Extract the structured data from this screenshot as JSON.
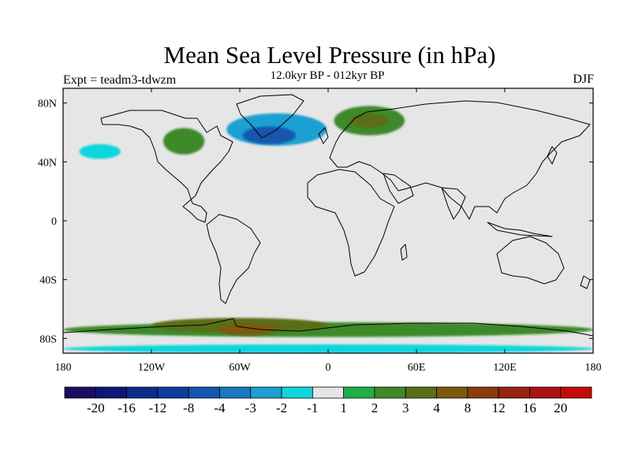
{
  "title": "Mean Sea Level Pressure (in hPa)",
  "subtitle": "12.0kyr BP - 012kyr BP",
  "experiment": "Expt = teadm3-tdwzm",
  "season": "DJF",
  "map": {
    "lon_range": [
      -180,
      180
    ],
    "lat_range": [
      -90,
      90
    ],
    "background_color": "#e6e6e6"
  },
  "x_ticks": [
    {
      "value": -180,
      "label": "180"
    },
    {
      "value": -120,
      "label": "120W"
    },
    {
      "value": -60,
      "label": "60W"
    },
    {
      "value": 0,
      "label": "0"
    },
    {
      "value": 60,
      "label": "60E"
    },
    {
      "value": 120,
      "label": "120E"
    },
    {
      "value": 180,
      "label": "180"
    }
  ],
  "y_ticks": [
    {
      "value": 80,
      "label": "80N"
    },
    {
      "value": 40,
      "label": "40N"
    },
    {
      "value": 0,
      "label": "0"
    },
    {
      "value": -40,
      "label": "40S"
    },
    {
      "value": -80,
      "label": "80S"
    }
  ],
  "colorbar": {
    "colors": [
      "#1e0c64",
      "#0d1776",
      "#0d2b8c",
      "#0e3c9e",
      "#1257ad",
      "#1879c0",
      "#1c9fd2",
      "#10d6dc",
      "#e6e6e6",
      "#20b04a",
      "#3e8a2a",
      "#5a6e14",
      "#7a5a0a",
      "#8a3d0a",
      "#982412",
      "#aa1212",
      "#c80a0a"
    ],
    "labels": [
      "-20",
      "-16",
      "-12",
      "-8",
      "-4",
      "-3",
      "-2",
      "-1",
      "1",
      "2",
      "3",
      "4",
      "8",
      "12",
      "16",
      "20"
    ]
  },
  "chart_data": {
    "type": "heatmap",
    "variable": "Mean Sea Level Pressure (in hPa)",
    "projection": "cylindrical equidistant",
    "xlim": [
      -180,
      180
    ],
    "ylim": [
      -90,
      90
    ],
    "levels": [
      -20,
      -16,
      -12,
      -8,
      -4,
      -3,
      -2,
      -1,
      1,
      2,
      3,
      4,
      8,
      12,
      16,
      20
    ],
    "regions": [
      {
        "lon": -35,
        "lat": 62,
        "rx": 45,
        "ry": 14,
        "level": -1
      },
      {
        "lon": -35,
        "lat": 62,
        "rx": 34,
        "ry": 11,
        "level": -3
      },
      {
        "lon": -40,
        "lat": 58,
        "rx": 18,
        "ry": 6,
        "level": -8
      },
      {
        "lon": -30,
        "lat": 38,
        "rx": 15,
        "ry": 7,
        "level": -1
      },
      {
        "lon": -155,
        "lat": 47,
        "rx": 28,
        "ry": 10,
        "level": -1
      },
      {
        "lon": -155,
        "lat": 47,
        "rx": 14,
        "ry": 5,
        "level": -2
      },
      {
        "lon": -98,
        "lat": 54,
        "rx": 14,
        "ry": 9,
        "level": 2
      },
      {
        "lon": 28,
        "lat": 68,
        "rx": 24,
        "ry": 10,
        "level": 2
      },
      {
        "lon": 28,
        "lat": 68,
        "rx": 13,
        "ry": 5,
        "level": 3
      },
      {
        "lon": 128,
        "lat": 45,
        "rx": 18,
        "ry": 10,
        "level": -1
      },
      {
        "lon": -45,
        "lat": -47,
        "rx": 38,
        "ry": 3,
        "level": -1
      },
      {
        "lon": 70,
        "lat": -50,
        "rx": 42,
        "ry": 4,
        "level": -1
      },
      {
        "lon": 0,
        "lat": -74,
        "rx": 180,
        "ry": 5,
        "level": 2
      },
      {
        "lon": -60,
        "lat": -71,
        "rx": 60,
        "ry": 5,
        "level": 3
      },
      {
        "lon": -55,
        "lat": -74,
        "rx": 20,
        "ry": 4,
        "level": 4
      },
      {
        "lon": 0,
        "lat": -87,
        "rx": 180,
        "ry": 3,
        "level": -2
      }
    ]
  }
}
